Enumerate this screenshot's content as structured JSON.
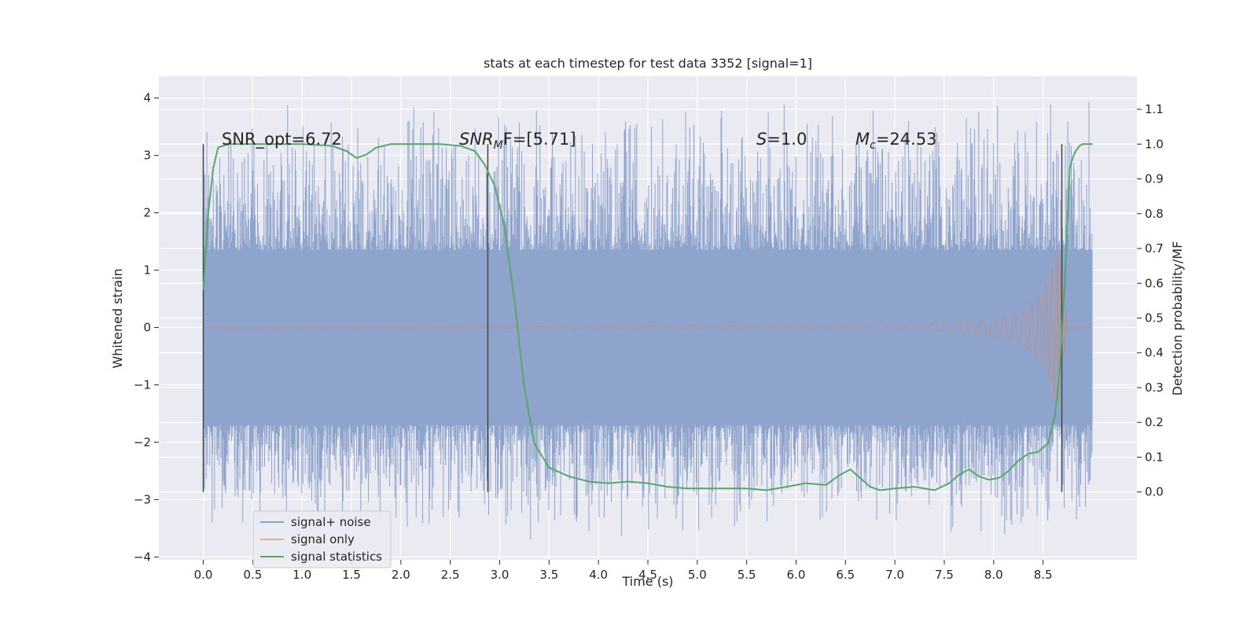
{
  "chart_data": {
    "type": "line",
    "title": "stats at each timestep for test data 3352 [signal=1]",
    "xlabel": "Time (s)",
    "ylabel": "Whitened strain",
    "y2label": "Detection probability/MF",
    "xlim": [
      -0.45,
      9.45
    ],
    "ylim": [
      -4.05,
      4.38
    ],
    "y2lim": [
      -0.195,
      1.195
    ],
    "xticks": [
      "0.0",
      "0.5",
      "1.0",
      "1.5",
      "2.0",
      "2.5",
      "3.0",
      "3.5",
      "4.0",
      "4.5",
      "5.0",
      "5.5",
      "6.0",
      "6.5",
      "7.0",
      "7.5",
      "8.0",
      "8.5"
    ],
    "yticks": [
      "4",
      "3",
      "2",
      "1",
      "0",
      "−1",
      "−2",
      "−3",
      "−4"
    ],
    "y2ticks": [
      "1.1",
      "1.0",
      "0.9",
      "0.8",
      "0.7",
      "0.6",
      "0.5",
      "0.4",
      "0.3",
      "0.2",
      "0.1",
      "0.0"
    ],
    "grid": true,
    "legend_placement": "lower-left",
    "colors": {
      "background": "#eaeaf2",
      "noise": "#8fa4cc",
      "signal_only": "#dd8452",
      "statistics": "#55a868",
      "vline": "#444444"
    },
    "annotations": {
      "snr_opt": "SNR_opt=6.72",
      "snr_mf_main": "SNR",
      "snr_mf_sub": "M",
      "snr_mf_rest": "F=[5.71]",
      "s_main": "S",
      "s_rest": "=1.0",
      "mc_main": "M",
      "mc_sub": "c",
      "mc_rest": "=24.53"
    },
    "vlines_x": [
      0.0,
      2.88,
      8.69
    ],
    "noise": {
      "x_range": [
        0.0,
        9.0
      ],
      "core_band": [
        -1.7,
        1.35
      ],
      "peak_range": [
        -3.7,
        4.0
      ]
    },
    "signal_only": {
      "x_range": [
        0.0,
        9.0
      ],
      "envelope": [
        [
          0.0,
          0.0
        ],
        [
          6.0,
          0.03
        ],
        [
          7.0,
          0.05
        ],
        [
          7.5,
          0.08
        ],
        [
          8.0,
          0.15
        ],
        [
          8.3,
          0.3
        ],
        [
          8.5,
          0.65
        ],
        [
          8.6,
          1.1
        ],
        [
          8.65,
          1.45
        ],
        [
          8.69,
          0.9
        ],
        [
          8.75,
          0.0
        ],
        [
          9.0,
          0.0
        ]
      ]
    },
    "series": [
      {
        "name": "signal+ noise",
        "role": "noise"
      },
      {
        "name": "signal only",
        "role": "signal_only"
      },
      {
        "name": "signal statistics",
        "role": "statistics",
        "axis": "right",
        "x": [
          0.0,
          0.05,
          0.1,
          0.15,
          0.25,
          0.5,
          1.0,
          1.3,
          1.45,
          1.55,
          1.65,
          1.75,
          1.9,
          2.1,
          2.4,
          2.6,
          2.75,
          2.85,
          2.95,
          3.05,
          3.15,
          3.25,
          3.35,
          3.5,
          3.7,
          3.9,
          4.1,
          4.3,
          4.5,
          4.7,
          4.9,
          5.2,
          5.5,
          5.7,
          5.9,
          6.1,
          6.3,
          6.45,
          6.55,
          6.65,
          6.75,
          6.85,
          7.0,
          7.2,
          7.4,
          7.55,
          7.65,
          7.75,
          7.85,
          7.95,
          8.05,
          8.15,
          8.25,
          8.35,
          8.45,
          8.55,
          8.62,
          8.67,
          8.72,
          8.77,
          8.8,
          8.83,
          8.87,
          8.9,
          9.0
        ],
        "values": [
          0.58,
          0.8,
          0.93,
          0.99,
          1.0,
          1.0,
          1.0,
          0.995,
          0.98,
          0.96,
          0.97,
          0.99,
          1.0,
          1.0,
          1.0,
          0.995,
          0.98,
          0.94,
          0.88,
          0.76,
          0.55,
          0.3,
          0.14,
          0.07,
          0.045,
          0.03,
          0.025,
          0.03,
          0.025,
          0.015,
          0.01,
          0.01,
          0.01,
          0.005,
          0.015,
          0.025,
          0.02,
          0.05,
          0.065,
          0.04,
          0.015,
          0.005,
          0.01,
          0.015,
          0.005,
          0.025,
          0.05,
          0.065,
          0.045,
          0.035,
          0.04,
          0.06,
          0.09,
          0.11,
          0.115,
          0.14,
          0.22,
          0.35,
          0.6,
          0.93,
          0.96,
          0.98,
          0.995,
          1.0,
          1.0
        ]
      }
    ]
  }
}
